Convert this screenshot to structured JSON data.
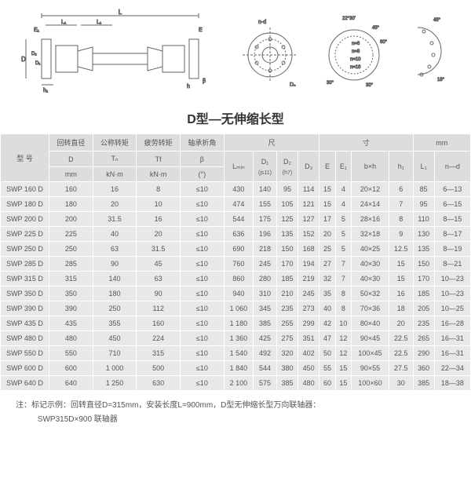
{
  "title": "D型—无伸缩长型",
  "diagram_labels": [
    "L",
    "L₁",
    "L₁",
    "E₁",
    "E",
    "D",
    "D₂",
    "D₁",
    "h₁",
    "β",
    "h",
    "n-d",
    "D₃",
    "22°30'",
    "30°",
    "45°",
    "60°",
    "n=6",
    "n=8",
    "n=10",
    "n=16",
    "45°",
    "18°"
  ],
  "diagram_style": {
    "stroke": "#666666",
    "stroke_width": 1,
    "fill": "none",
    "text_color": "#555555",
    "font_size": 8
  },
  "headers": {
    "model": "型 号",
    "rotation_dia": "回转直径",
    "nominal_torque": "公称转矩",
    "fatigue_torque": "疲劳转矩",
    "bearing_angle": "轴承折角",
    "dim_chi": "尺",
    "dim_cun": "寸",
    "dim_mm": "mm",
    "D": "D",
    "Tn": "Tₙ",
    "Tf": "Tf",
    "beta": "β",
    "mm": "mm",
    "kNm": "kN·m",
    "deg": "(°)",
    "Lmin": "Lₘᵢₙ",
    "D1": "D₁",
    "D1_sub": "(js11)",
    "D2": "D₂",
    "D2_sub": "(h7)",
    "D3": "D₃",
    "E": "E",
    "E1": "E₁",
    "bxh": "b×h",
    "h1": "h₁",
    "L1": "L₁",
    "nd": "n—d"
  },
  "rows": [
    {
      "model": "SWP 160 D",
      "D": "160",
      "Tn": "16",
      "Tf": "8",
      "beta": "≤10",
      "Lmin": "430",
      "D1": "140",
      "D2": "95",
      "D3": "114",
      "E": "15",
      "E1": "4",
      "bxh": "20×12",
      "h1": "6",
      "L1": "85",
      "nd": "6—13"
    },
    {
      "model": "SWP 180 D",
      "D": "180",
      "Tn": "20",
      "Tf": "10",
      "beta": "≤10",
      "Lmin": "474",
      "D1": "155",
      "D2": "105",
      "D3": "121",
      "E": "15",
      "E1": "4",
      "bxh": "24×14",
      "h1": "7",
      "L1": "95",
      "nd": "6—15"
    },
    {
      "model": "SWP 200 D",
      "D": "200",
      "Tn": "31.5",
      "Tf": "16",
      "beta": "≤10",
      "Lmin": "544",
      "D1": "175",
      "D2": "125",
      "D3": "127",
      "E": "17",
      "E1": "5",
      "bxh": "28×16",
      "h1": "8",
      "L1": "110",
      "nd": "8—15"
    },
    {
      "model": "SWP 225 D",
      "D": "225",
      "Tn": "40",
      "Tf": "20",
      "beta": "≤10",
      "Lmin": "636",
      "D1": "196",
      "D2": "135",
      "D3": "152",
      "E": "20",
      "E1": "5",
      "bxh": "32×18",
      "h1": "9",
      "L1": "130",
      "nd": "8—17"
    },
    {
      "model": "SWP 250 D",
      "D": "250",
      "Tn": "63",
      "Tf": "31.5",
      "beta": "≤10",
      "Lmin": "690",
      "D1": "218",
      "D2": "150",
      "D3": "168",
      "E": "25",
      "E1": "5",
      "bxh": "40×25",
      "h1": "12.5",
      "L1": "135",
      "nd": "8—19"
    },
    {
      "model": "SWP 285 D",
      "D": "285",
      "Tn": "90",
      "Tf": "45",
      "beta": "≤10",
      "Lmin": "760",
      "D1": "245",
      "D2": "170",
      "D3": "194",
      "E": "27",
      "E1": "7",
      "bxh": "40×30",
      "h1": "15",
      "L1": "150",
      "nd": "8—21"
    },
    {
      "model": "SWP 315 D",
      "D": "315",
      "Tn": "140",
      "Tf": "63",
      "beta": "≤10",
      "Lmin": "860",
      "D1": "280",
      "D2": "185",
      "D3": "219",
      "E": "32",
      "E1": "7",
      "bxh": "40×30",
      "h1": "15",
      "L1": "170",
      "nd": "10—23"
    },
    {
      "model": "SWP 350 D",
      "D": "350",
      "Tn": "180",
      "Tf": "90",
      "beta": "≤10",
      "Lmin": "940",
      "D1": "310",
      "D2": "210",
      "D3": "245",
      "E": "35",
      "E1": "8",
      "bxh": "50×32",
      "h1": "16",
      "L1": "185",
      "nd": "10—23"
    },
    {
      "model": "SWP 390 D",
      "D": "390",
      "Tn": "250",
      "Tf": "112",
      "beta": "≤10",
      "Lmin": "1 060",
      "D1": "345",
      "D2": "235",
      "D3": "273",
      "E": "40",
      "E1": "8",
      "bxh": "70×36",
      "h1": "18",
      "L1": "205",
      "nd": "10—25"
    },
    {
      "model": "SWP 435 D",
      "D": "435",
      "Tn": "355",
      "Tf": "160",
      "beta": "≤10",
      "Lmin": "1 180",
      "D1": "385",
      "D2": "255",
      "D3": "299",
      "E": "42",
      "E1": "10",
      "bxh": "80×40",
      "h1": "20",
      "L1": "235",
      "nd": "16—28"
    },
    {
      "model": "SWP 480 D",
      "D": "480",
      "Tn": "450",
      "Tf": "224",
      "beta": "≤10",
      "Lmin": "1 360",
      "D1": "425",
      "D2": "275",
      "D3": "351",
      "E": "47",
      "E1": "12",
      "bxh": "90×45",
      "h1": "22.5",
      "L1": "265",
      "nd": "16—31"
    },
    {
      "model": "SWP 550 D",
      "D": "550",
      "Tn": "710",
      "Tf": "315",
      "beta": "≤10",
      "Lmin": "1 540",
      "D1": "492",
      "D2": "320",
      "D3": "402",
      "E": "50",
      "E1": "12",
      "bxh": "100×45",
      "h1": "22.5",
      "L1": "290",
      "nd": "16—31"
    },
    {
      "model": "SWP 600 D",
      "D": "600",
      "Tn": "1 000",
      "Tf": "500",
      "beta": "≤10",
      "Lmin": "1 840",
      "D1": "544",
      "D2": "380",
      "D3": "450",
      "E": "55",
      "E1": "15",
      "bxh": "90×55",
      "h1": "27.5",
      "L1": "360",
      "nd": "22—34"
    },
    {
      "model": "SWP 640 D",
      "D": "640",
      "Tn": "1 250",
      "Tf": "630",
      "beta": "≤10",
      "Lmin": "2 100",
      "D1": "575",
      "D2": "385",
      "D3": "480",
      "E": "60",
      "E1": "15",
      "bxh": "100×60",
      "h1": "30",
      "L1": "385",
      "nd": "18—38"
    }
  ],
  "note_prefix": "注：标记示例：",
  "note_line1": "回转直径D=315mm，安装长度L=900mm，D型无伸缩长型万向联轴器：",
  "note_line2": "SWP315D×900 联轴器"
}
